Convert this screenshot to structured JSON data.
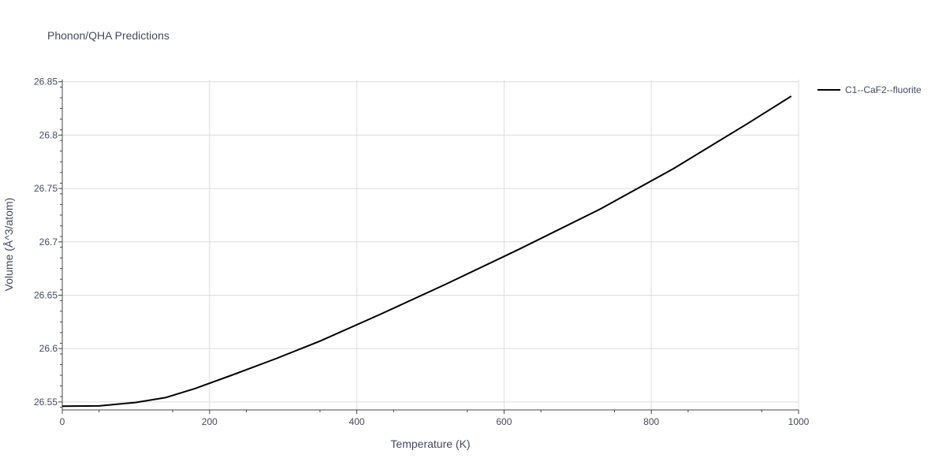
{
  "chart_data": {
    "type": "line",
    "title": "Phonon/QHA Predictions",
    "xlabel": "Temperature (K)",
    "ylabel": "Volume (Å^3/atom)",
    "xlim": [
      0,
      1000
    ],
    "ylim": [
      26.5425,
      26.852
    ],
    "xticks": [
      0,
      200,
      400,
      600,
      800,
      1000
    ],
    "xtick_labels": [
      "0",
      "200",
      "400",
      "600",
      "800",
      "1000"
    ],
    "yticks": [
      26.55,
      26.6,
      26.65,
      26.7,
      26.75,
      26.8,
      26.85
    ],
    "ytick_labels": [
      "26.55",
      "26.6",
      "26.65",
      "26.7",
      "26.75",
      "26.8",
      "26.85"
    ],
    "grid": true,
    "legend_position": "top-right",
    "series": [
      {
        "name": "C1--CaF2--fluorite",
        "color": "#000000",
        "x": [
          0,
          50,
          100,
          140,
          180,
          230,
          290,
          350,
          430,
          520,
          620,
          730,
          830,
          930,
          990
        ],
        "y": [
          26.546,
          26.5463,
          26.5495,
          26.554,
          26.5625,
          26.575,
          26.5905,
          26.607,
          26.6315,
          26.66,
          26.693,
          26.7305,
          26.7685,
          26.8105,
          26.8365
        ]
      }
    ]
  }
}
